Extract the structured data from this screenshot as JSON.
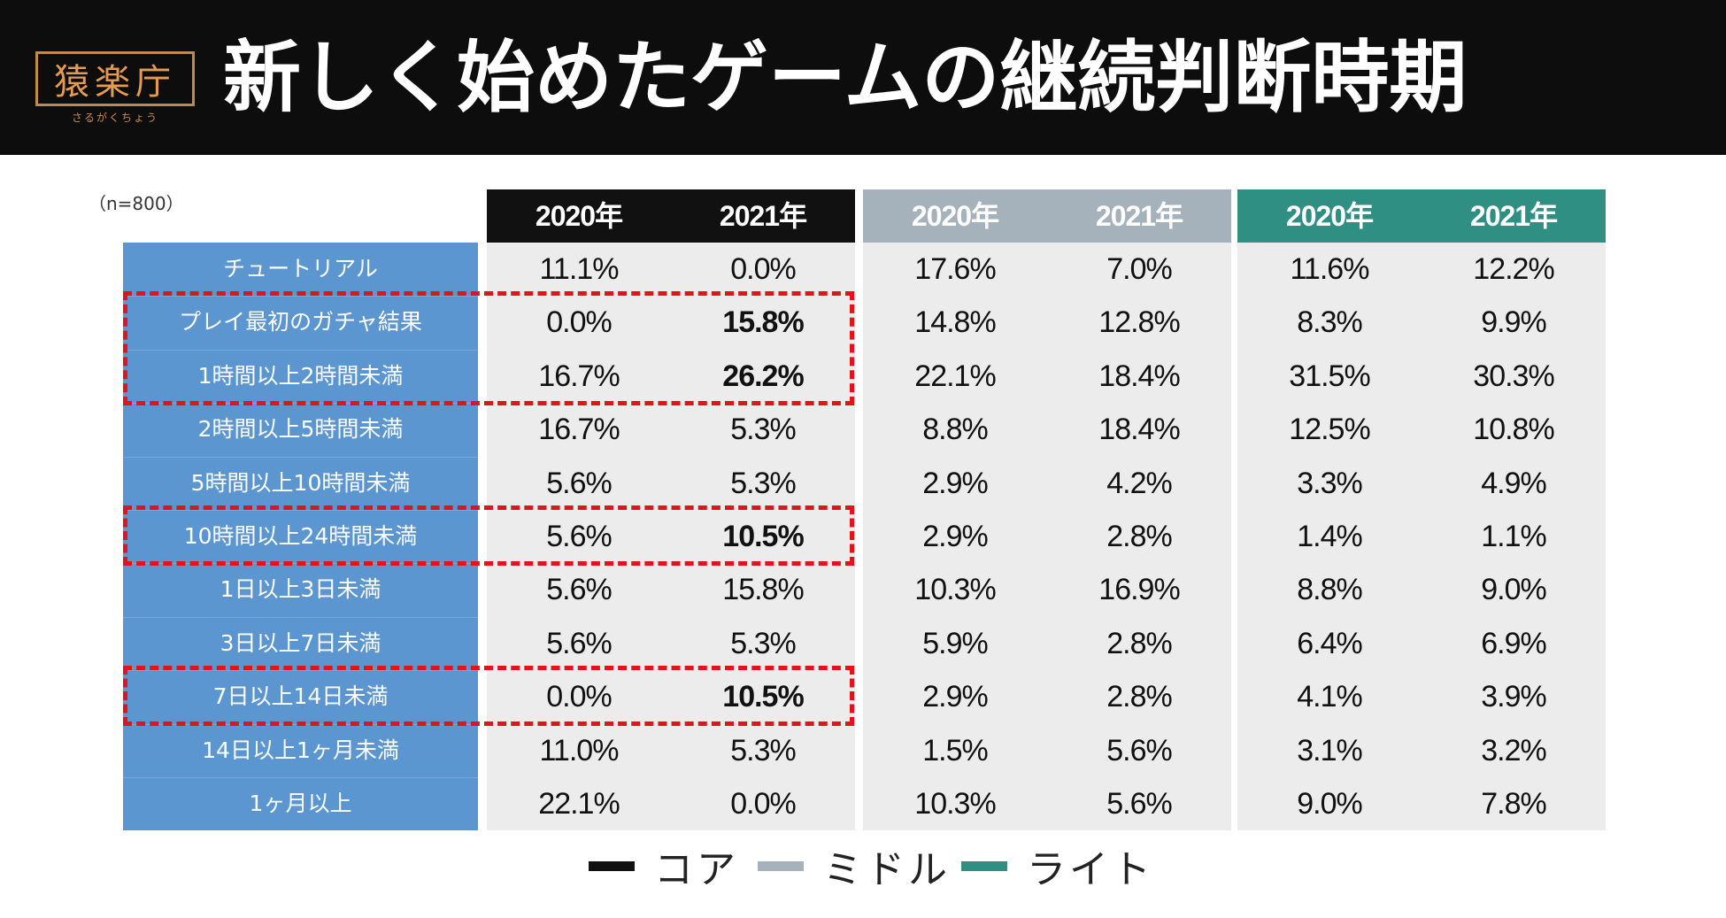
{
  "header": {
    "title": "新しく始めたゲームの継続判断時期",
    "logo_text": "猿楽庁",
    "logo_subtext": "さるがくちょう"
  },
  "sample_size": "（n=800）",
  "colors": {
    "header_bg": "#0d0d0d",
    "label_bg": "#5b96d0",
    "cell_bg": "#ececec",
    "highlight": "#e0141d",
    "core": "#111111",
    "middle": "#a6b2bb",
    "light": "#2f8f82"
  },
  "chart_data": {
    "type": "table",
    "title": "新しく始めたゲームの継続判断時期",
    "note": "（n=800）",
    "groups": [
      {
        "name": "コア",
        "color": "#111111",
        "columns": [
          "2020年",
          "2021年"
        ]
      },
      {
        "name": "ミドル",
        "color": "#a6b2bb",
        "columns": [
          "2020年",
          "2021年"
        ]
      },
      {
        "name": "ライト",
        "color": "#2f8f82",
        "columns": [
          "2020年",
          "2021年"
        ]
      }
    ],
    "columns": [
      "2020年",
      "2021年",
      "2020年",
      "2021年",
      "2020年",
      "2021年"
    ],
    "rows": [
      {
        "label": "チュートリアル",
        "values": [
          "11.1%",
          "0.0%",
          "17.6%",
          "7.0%",
          "11.6%",
          "12.2%"
        ]
      },
      {
        "label": "プレイ最初のガチャ結果",
        "values": [
          "0.0%",
          "15.8%",
          "14.8%",
          "12.8%",
          "8.3%",
          "9.9%"
        ],
        "bold": [
          1
        ]
      },
      {
        "label": "1時間以上2時間未満",
        "values": [
          "16.7%",
          "26.2%",
          "22.1%",
          "18.4%",
          "31.5%",
          "30.3%"
        ],
        "bold": [
          1
        ]
      },
      {
        "label": "2時間以上5時間未満",
        "values": [
          "16.7%",
          "5.3%",
          "8.8%",
          "18.4%",
          "12.5%",
          "10.8%"
        ]
      },
      {
        "label": "5時間以上10時間未満",
        "values": [
          "5.6%",
          "5.3%",
          "2.9%",
          "4.2%",
          "3.3%",
          "4.9%"
        ]
      },
      {
        "label": "10時間以上24時間未満",
        "values": [
          "5.6%",
          "10.5%",
          "2.9%",
          "2.8%",
          "1.4%",
          "1.1%"
        ],
        "bold": [
          1
        ]
      },
      {
        "label": "1日以上3日未満",
        "values": [
          "5.6%",
          "15.8%",
          "10.3%",
          "16.9%",
          "8.8%",
          "9.0%"
        ]
      },
      {
        "label": "3日以上7日未満",
        "values": [
          "5.6%",
          "5.3%",
          "5.9%",
          "2.8%",
          "6.4%",
          "6.9%"
        ]
      },
      {
        "label": "7日以上14日未満",
        "values": [
          "0.0%",
          "10.5%",
          "2.9%",
          "2.8%",
          "4.1%",
          "3.9%"
        ],
        "bold": [
          1
        ]
      },
      {
        "label": "14日以上1ヶ月未満",
        "values": [
          "11.0%",
          "5.3%",
          "1.5%",
          "5.6%",
          "3.1%",
          "3.2%"
        ]
      },
      {
        "label": "1ヶ月以上",
        "values": [
          "22.1%",
          "0.0%",
          "10.3%",
          "5.6%",
          "9.0%",
          "7.8%"
        ]
      }
    ],
    "highlighted_rows": [
      [
        1,
        2
      ],
      [
        5,
        5
      ],
      [
        8,
        8
      ]
    ],
    "legend": [
      "コア",
      "ミドル",
      "ライト"
    ]
  }
}
